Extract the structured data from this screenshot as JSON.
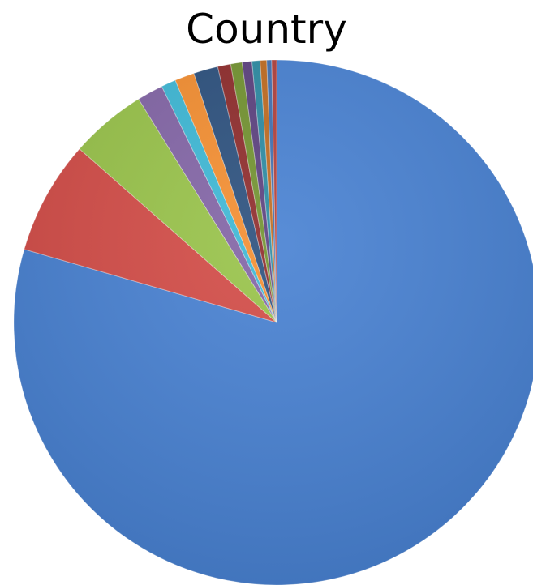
{
  "chart_data": {
    "type": "pie",
    "title": "Country",
    "legend": "none",
    "slices": [
      {
        "value": 79.5,
        "color": "#4680D2"
      },
      {
        "value": 7.0,
        "color": "#D34A45"
      },
      {
        "value": 4.7,
        "color": "#98C348"
      },
      {
        "value": 1.6,
        "color": "#8264A6"
      },
      {
        "value": 0.9,
        "color": "#3CB8D6"
      },
      {
        "value": 1.2,
        "color": "#F58E2F"
      },
      {
        "value": 1.5,
        "color": "#2A4F7D"
      },
      {
        "value": 0.8,
        "color": "#8E2A2A"
      },
      {
        "value": 0.7,
        "color": "#71922E"
      },
      {
        "value": 0.6,
        "color": "#5A3F7E"
      },
      {
        "value": 0.5,
        "color": "#2A8AA2"
      },
      {
        "value": 0.4,
        "color": "#C06A1E"
      },
      {
        "value": 0.3,
        "color": "#3F6FB0"
      },
      {
        "value": 0.3,
        "color": "#B03E3A"
      }
    ]
  }
}
